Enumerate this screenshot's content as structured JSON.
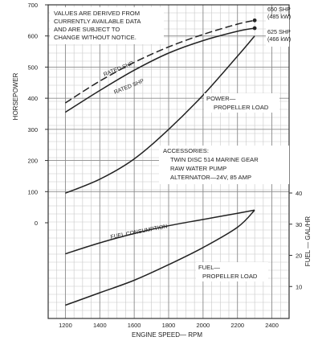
{
  "chart_data": {
    "type": "line",
    "x_label": "ENGINE SPEED— RPM",
    "x_ticks": [
      1200,
      1400,
      1600,
      1800,
      2000,
      2200,
      2400
    ],
    "x_range": [
      1100,
      2500
    ],
    "y_left_label": "HORSEPOWER",
    "y_left_ticks": [
      0,
      100,
      200,
      300,
      400,
      500,
      600,
      700
    ],
    "y_left_tick_labels": [
      "0",
      "100",
      "200",
      "300",
      "400",
      "500",
      "600",
      "700"
    ],
    "y_right_label": "FUEL — GAL/HR",
    "y_right_ticks": [
      10,
      20,
      30,
      40
    ],
    "grid": true,
    "notice": [
      "VALUES ARE DERIVED FROM",
      "CURRENTLY AVAILABLE DATA",
      "AND ARE SUBJECT TO",
      "CHANGE WITHOUT NOTICE."
    ],
    "accessories": [
      "ACCESSORIES:",
      "TWIN DISC 514 MARINE GEAR",
      "RAW WATER PUMP",
      "ALTERNATOR—24V, 85 AMP"
    ],
    "series": [
      {
        "name": "RATED SHP",
        "end_label": [
          "650 SHP",
          "(485 kW)"
        ],
        "axis": "power",
        "style": "dashed",
        "x": [
          1200,
          1400,
          1600,
          1800,
          2000,
          2200,
          2300
        ],
        "y": [
          385,
          455,
          515,
          565,
          605,
          638,
          650
        ]
      },
      {
        "name": "RATED SHP",
        "end_label": [
          "625 SHP",
          "(466 kW)"
        ],
        "axis": "power",
        "style": "solid",
        "x": [
          1200,
          1400,
          1600,
          1800,
          2000,
          2200,
          2300
        ],
        "y": [
          355,
          425,
          490,
          545,
          585,
          615,
          625
        ]
      },
      {
        "name": "POWER— PROPELLER LOAD",
        "axis": "power",
        "style": "solid",
        "x": [
          1200,
          1400,
          1600,
          1800,
          2000,
          2200,
          2300
        ],
        "y": [
          95,
          140,
          205,
          300,
          410,
          535,
          600
        ]
      },
      {
        "name": "FUEL CONSUMPTION",
        "axis": "fuel",
        "style": "solid",
        "x": [
          1200,
          1400,
          1600,
          1800,
          2000,
          2200,
          2300
        ],
        "y": [
          20.5,
          24,
          27,
          29.5,
          31.5,
          33.5,
          34.5
        ]
      },
      {
        "name": "FUEL— PROPELLER LOAD",
        "axis": "fuel",
        "style": "solid",
        "x": [
          1200,
          1400,
          1600,
          1800,
          2000,
          2200,
          2300
        ],
        "y": [
          4,
          8,
          12,
          17,
          22.5,
          29,
          34.5
        ]
      }
    ],
    "curve_labels": {
      "rated_dashed": "RATED SHP",
      "rated_solid": "RATED SHP",
      "power_prop": [
        "POWER—",
        "PROPELLER LOAD"
      ],
      "fuel_consumption": "FUEL CONSUMPTION",
      "fuel_prop": [
        "FUEL—",
        "PROPELLER LOAD"
      ]
    }
  }
}
